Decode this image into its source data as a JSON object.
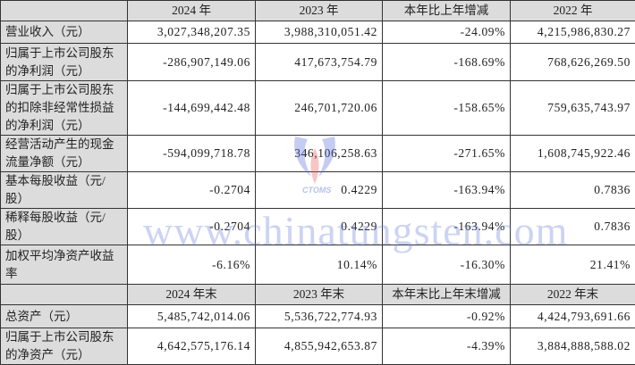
{
  "header1": [
    "",
    "2024 年",
    "2023 年",
    "本年比上年增减",
    "2022 年"
  ],
  "rows1": [
    {
      "label": "营业收入（元）",
      "values": [
        "3,027,348,207.35",
        "3,988,310,051.42",
        "-24.09%",
        "4,215,986,830.27"
      ]
    },
    {
      "label": "归属于上市公司股东的净利润（元）",
      "values": [
        "-286,907,149.06",
        "417,673,754.79",
        "-168.69%",
        "768,626,269.50"
      ]
    },
    {
      "label": "归属于上市公司股东的扣除非经常性损益的净利润（元）",
      "values": [
        "-144,699,442.48",
        "246,701,720.06",
        "-158.65%",
        "759,635,743.97"
      ]
    },
    {
      "label": "经营活动产生的现金流量净额（元）",
      "values": [
        "-594,099,718.78",
        "346,106,258.63",
        "-271.65%",
        "1,608,745,922.46"
      ]
    },
    {
      "label": "基本每股收益（元/股）",
      "values": [
        "-0.2704",
        "0.4229",
        "-163.94%",
        "0.7836"
      ]
    },
    {
      "label": "稀释每股收益（元/股）",
      "values": [
        "-0.2704",
        "0.4229",
        "-163.94%",
        "0.7836"
      ]
    },
    {
      "label": "加权平均净资产收益率",
      "values": [
        "-6.16%",
        "10.14%",
        "-16.30%",
        "21.41%"
      ]
    }
  ],
  "header2": [
    "",
    "2024 年末",
    "2023 年末",
    "本年末比上年末增减",
    "2022 年末"
  ],
  "rows2": [
    {
      "label": "总资产（元）",
      "values": [
        "5,485,742,014.06",
        "5,536,722,774.93",
        "-0.92%",
        "4,424,793,691.66"
      ]
    },
    {
      "label": "归属于上市公司股东的净资产（元）",
      "values": [
        "4,642,575,176.14",
        "4,855,942,653.87",
        "-4.39%",
        "3,884,888,588.02"
      ]
    }
  ],
  "watermark": {
    "text": "www.chinatungsten.com",
    "logo": "CTOMS"
  }
}
